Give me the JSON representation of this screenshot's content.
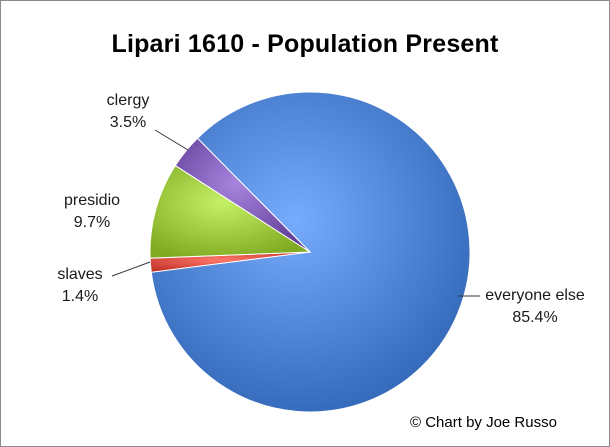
{
  "chart_data": {
    "type": "pie",
    "title": "Lipari 1610 - Population Present",
    "slices": [
      {
        "label": "everyone else",
        "value": 85.4,
        "display": "85.4%",
        "color": "#4a7fd0"
      },
      {
        "label": "slaves",
        "value": 1.4,
        "display": "1.4%",
        "color": "#d94a3f"
      },
      {
        "label": "presidio",
        "value": 9.7,
        "display": "9.7%",
        "color": "#98c33a"
      },
      {
        "label": "clergy",
        "value": 3.5,
        "display": "3.5%",
        "color": "#7a57b0"
      }
    ],
    "start_angle_deg": 45,
    "credit": "© Chart by Joe Russo"
  }
}
